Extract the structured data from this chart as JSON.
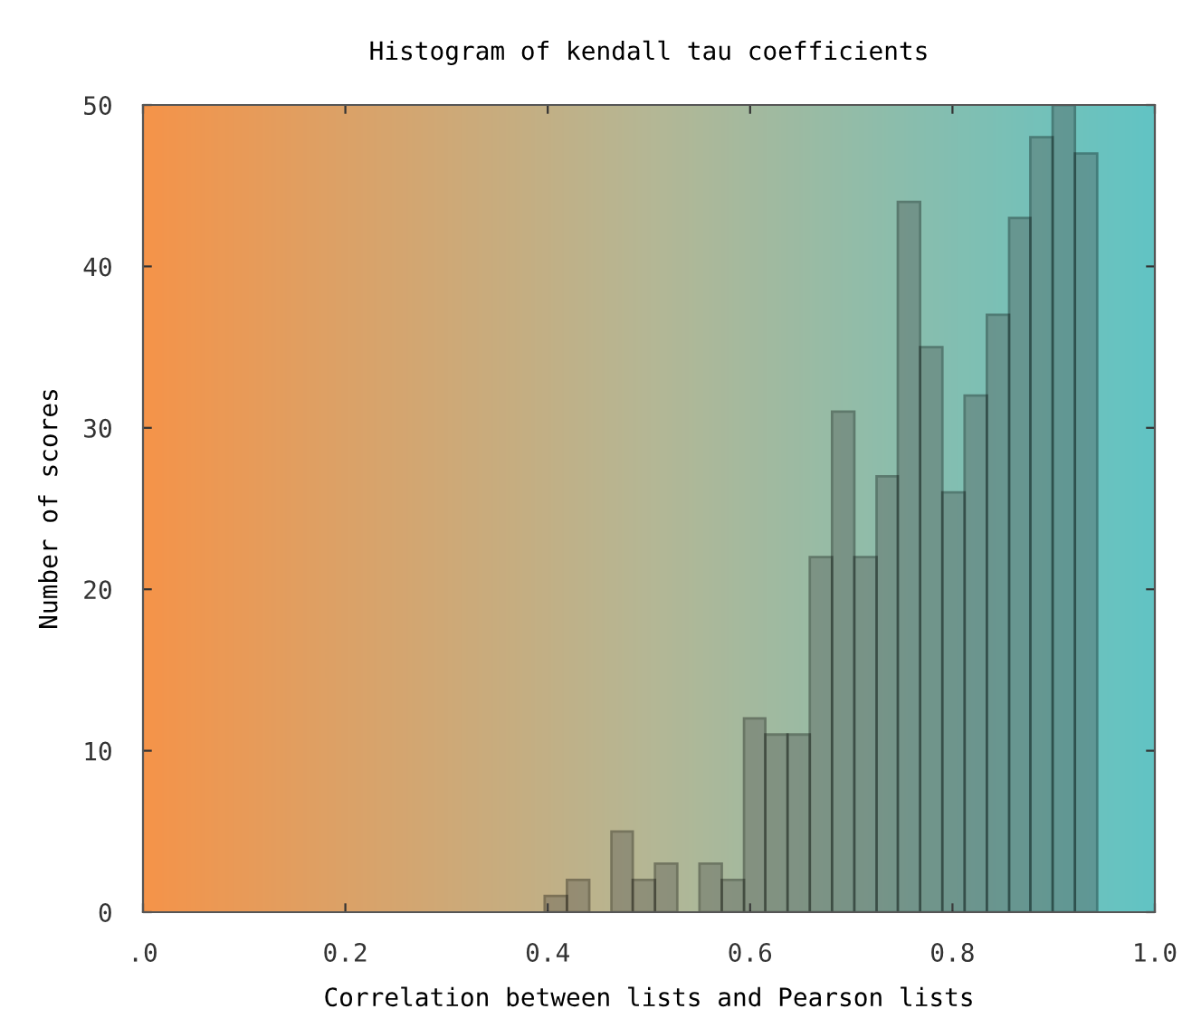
{
  "chart_data": {
    "type": "histogram",
    "title": "Histogram of kendall tau coefficients",
    "xlabel": "Correlation between lists and Pearson lists",
    "ylabel": "Number of scores",
    "bins": [
      0.397,
      0.419,
      0.441,
      0.463,
      0.484,
      0.506,
      0.528,
      0.55,
      0.572,
      0.594,
      0.615,
      0.637,
      0.659,
      0.681,
      0.703,
      0.725,
      0.746,
      0.768,
      0.79,
      0.812,
      0.834,
      0.856,
      0.877,
      0.899,
      0.921,
      0.943
    ],
    "values": [
      1,
      2,
      0,
      5,
      2,
      3,
      0,
      3,
      2,
      12,
      11,
      11,
      22,
      31,
      22,
      27,
      44,
      35,
      26,
      32,
      37,
      43,
      48,
      50,
      47
    ],
    "color": "#4a4a4a",
    "xlim": [
      0,
      1
    ],
    "xticks": [
      {
        "value": 0,
        "label": ".0"
      },
      0.2,
      0.4,
      0.6,
      0.8,
      {
        "value": 1.0,
        "label": "1.0"
      }
    ],
    "ylim": [
      0,
      50
    ],
    "yticks": [
      0,
      10,
      20,
      30,
      40,
      50
    ],
    "grid": false,
    "legend": false
  }
}
